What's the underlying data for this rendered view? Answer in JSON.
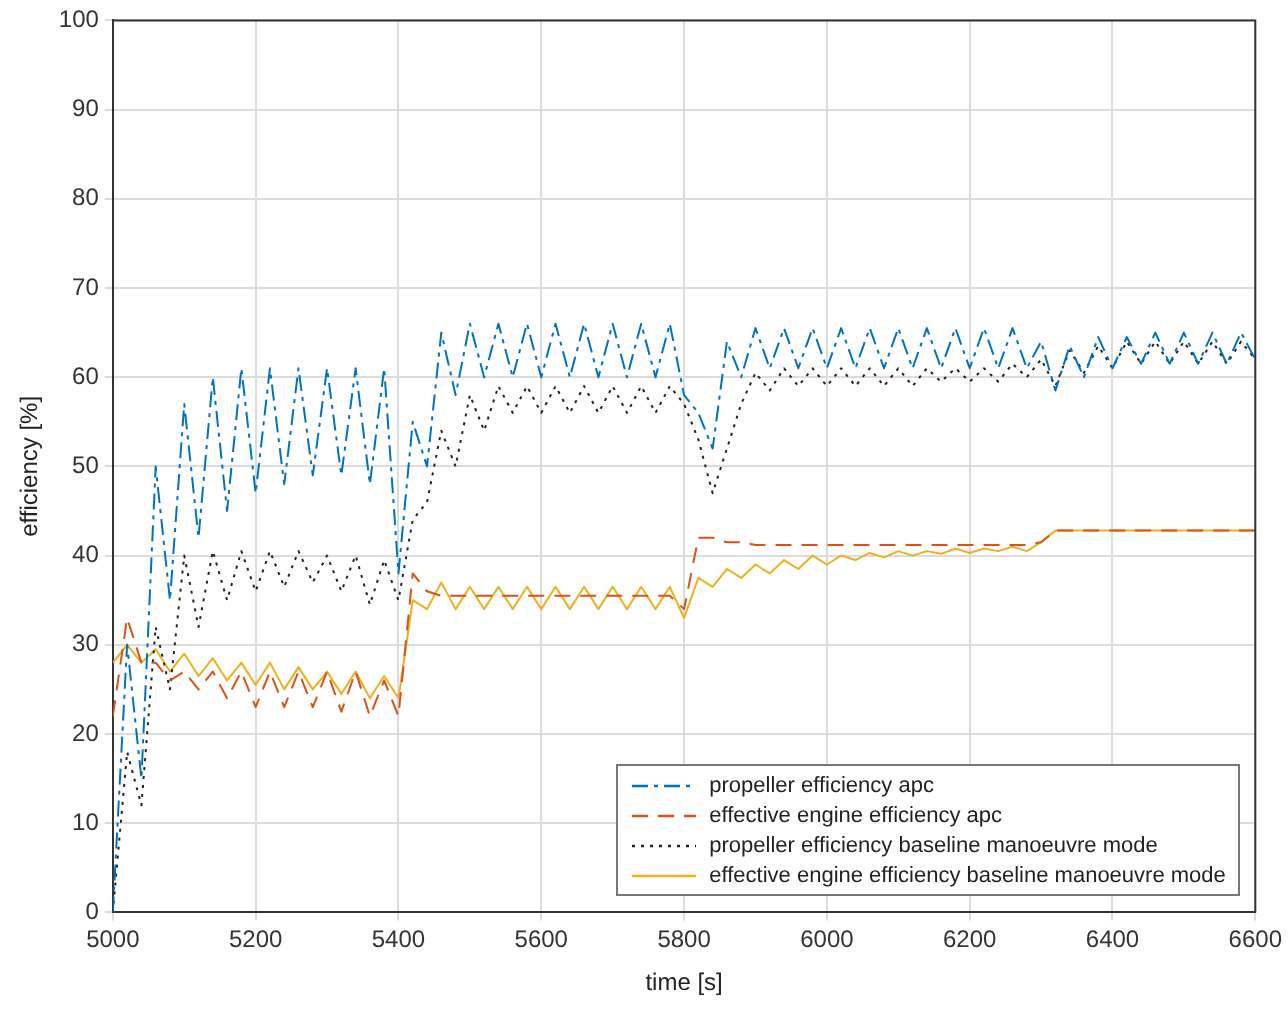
{
  "chart_data": {
    "type": "line",
    "xlabel": "time [s]",
    "ylabel": "efficiency [%]",
    "x": [
      5000,
      5020,
      5040,
      5060,
      5080,
      5100,
      5120,
      5140,
      5160,
      5180,
      5200,
      5220,
      5240,
      5260,
      5280,
      5300,
      5320,
      5340,
      5360,
      5380,
      5400,
      5420,
      5440,
      5460,
      5480,
      5500,
      5520,
      5540,
      5560,
      5580,
      5600,
      5620,
      5640,
      5660,
      5680,
      5700,
      5720,
      5740,
      5760,
      5780,
      5800,
      5820,
      5840,
      5860,
      5880,
      5900,
      5920,
      5940,
      5960,
      5980,
      6000,
      6020,
      6040,
      6060,
      6080,
      6100,
      6120,
      6140,
      6160,
      6180,
      6200,
      6220,
      6240,
      6260,
      6280,
      6300,
      6320,
      6340,
      6360,
      6380,
      6400,
      6420,
      6440,
      6460,
      6480,
      6500,
      6520,
      6540,
      6560,
      6580,
      6600
    ],
    "xlim": [
      5000,
      6600
    ],
    "xticks": [
      5000,
      5200,
      5400,
      5600,
      5800,
      6000,
      6200,
      6400,
      6600
    ],
    "ylim": [
      0,
      100
    ],
    "yticks": [
      0,
      10,
      20,
      30,
      40,
      50,
      60,
      70,
      80,
      90,
      100
    ],
    "grid": true,
    "legend": "bottom right",
    "marker": "none",
    "series": [
      {
        "name": "propeller efficiency apc",
        "color": "#0072bd",
        "line_style": "dashdot",
        "values": [
          0,
          30,
          15,
          50,
          35,
          57,
          42,
          60,
          45,
          61,
          47,
          61,
          48,
          61,
          49,
          61,
          49,
          61,
          48,
          61,
          38,
          55,
          50,
          65,
          58,
          66,
          60,
          66,
          60,
          66,
          60,
          66,
          60,
          66,
          60,
          66,
          60,
          66,
          60,
          66,
          58,
          56,
          52,
          64,
          60,
          65.5,
          61,
          65.5,
          61,
          65.5,
          61,
          65.5,
          61,
          65.5,
          61,
          65.5,
          61,
          65.5,
          61,
          65.5,
          61,
          65.5,
          61,
          65.5,
          61,
          64,
          58.5,
          63.5,
          60,
          64.5,
          61,
          64.5,
          61.5,
          65,
          61.5,
          65,
          61.5,
          65,
          61.5,
          65,
          62
        ]
      },
      {
        "name": "effective engine efficiency apc",
        "color": "#d95319",
        "line_style": "dashed",
        "values": [
          22,
          33,
          28,
          28,
          26,
          27,
          25,
          27,
          24,
          27,
          23,
          27,
          23,
          27,
          23,
          27,
          22.5,
          27,
          22,
          26,
          22,
          38,
          36,
          35.5,
          35.5,
          35.5,
          35.5,
          35.5,
          35.5,
          35.5,
          35.5,
          35.5,
          35.5,
          35.5,
          35.5,
          35.5,
          35.5,
          35.5,
          35.5,
          35.5,
          34,
          42,
          42,
          41.5,
          41.5,
          41.2,
          41.2,
          41.2,
          41.2,
          41.2,
          41.2,
          41.2,
          41.2,
          41.2,
          41.2,
          41.2,
          41.2,
          41.2,
          41.2,
          41.2,
          41.2,
          41.2,
          41.2,
          41.2,
          41.2,
          41.5,
          42.8,
          42.8,
          42.8,
          42.8,
          42.8,
          42.8,
          42.8,
          42.8,
          42.8,
          42.8,
          42.8,
          42.8,
          42.8,
          42.8,
          42.8
        ]
      },
      {
        "name": "propeller efficiency baseline manoeuvre mode",
        "color": "#222222",
        "line_style": "dotted",
        "values": [
          0,
          18,
          12,
          32,
          25,
          40,
          32,
          40.5,
          35,
          40.5,
          36,
          40.5,
          36.5,
          40.5,
          37,
          40,
          36,
          40,
          34.5,
          39.5,
          35,
          44,
          46,
          54,
          50,
          58,
          54,
          59,
          56,
          59,
          56,
          59,
          56,
          59,
          56,
          59,
          56,
          59,
          56,
          59,
          57,
          53,
          47,
          52,
          57,
          60.5,
          58.5,
          61,
          59,
          61,
          59,
          61,
          59,
          61,
          59,
          61,
          59,
          61,
          59.5,
          61,
          59.5,
          61,
          59.5,
          61.5,
          60,
          62,
          59,
          63,
          60.5,
          63.5,
          61,
          64,
          61.5,
          64,
          61.5,
          64,
          61.5,
          64,
          61.5,
          64,
          62
        ]
      },
      {
        "name": "effective engine efficiency baseline manoeuvre mode",
        "color": "#edb120",
        "line_style": "solid",
        "values": [
          28,
          30,
          28,
          29.5,
          27,
          29,
          26.5,
          28.5,
          26,
          28,
          25.5,
          28,
          25,
          27.5,
          25,
          27,
          24.5,
          27,
          24,
          26.5,
          24,
          35,
          34,
          37,
          34,
          36.5,
          34,
          36.5,
          34,
          36.5,
          34,
          36.5,
          34,
          36.5,
          34,
          36.5,
          34,
          36.5,
          34,
          36.5,
          33,
          37.5,
          36.5,
          38.5,
          37.5,
          39,
          38,
          39.5,
          38.5,
          40,
          39,
          40,
          39.5,
          40.3,
          39.8,
          40.5,
          40,
          40.5,
          40.2,
          40.8,
          40.3,
          40.8,
          40.5,
          41,
          40.5,
          41.5,
          42.8,
          42.8,
          42.8,
          42.8,
          42.8,
          42.8,
          42.8,
          42.8,
          42.8,
          42.8,
          42.8,
          42.8,
          42.8,
          42.8,
          42.8
        ]
      }
    ]
  }
}
